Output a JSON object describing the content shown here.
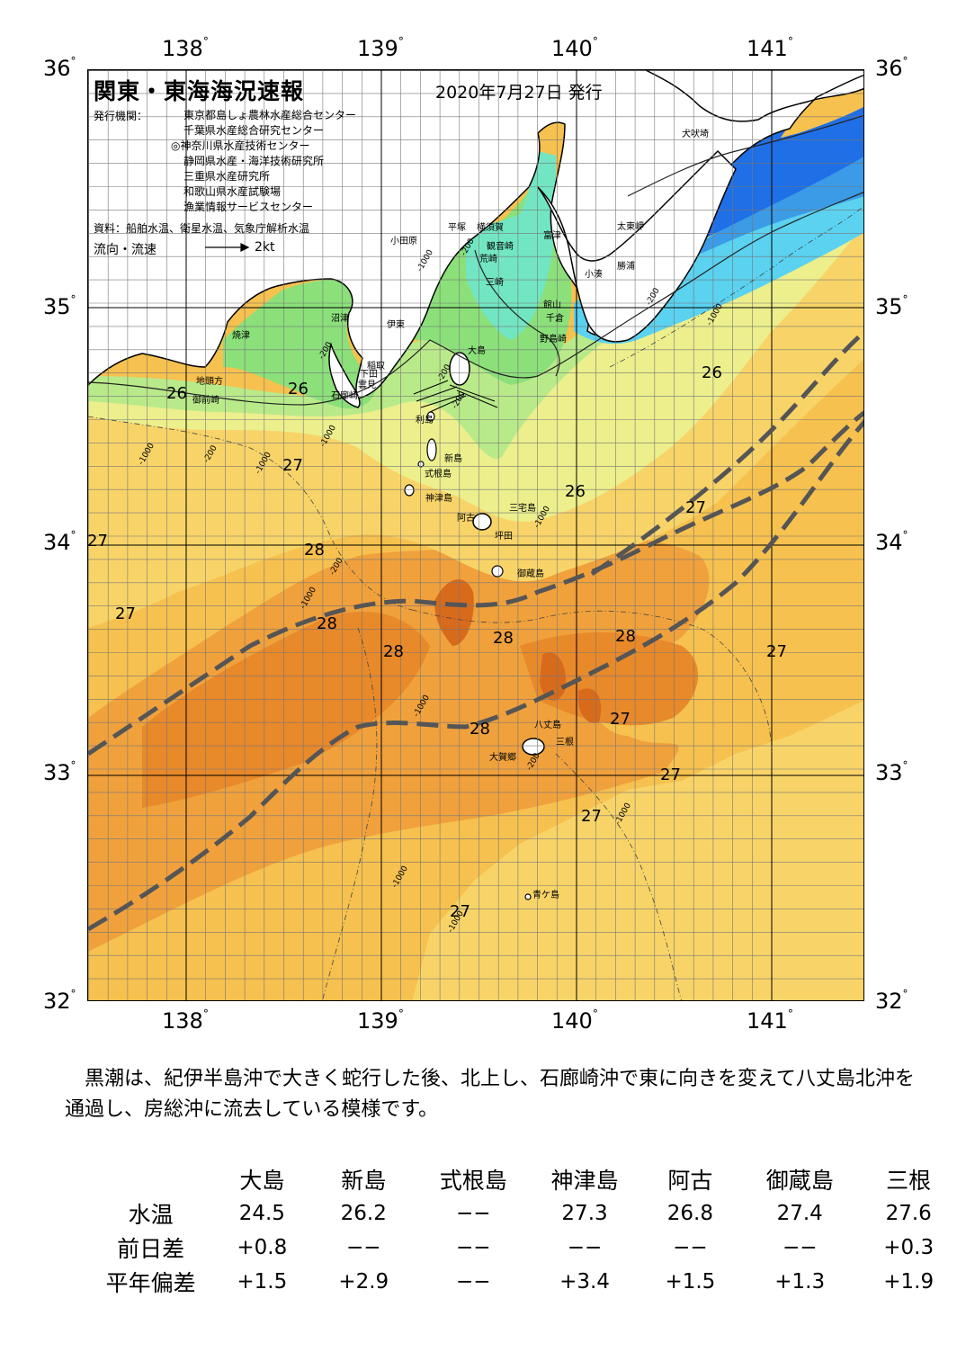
{
  "map": {
    "title": "関東・東海海況速報",
    "date": "2020年7月27日 発行",
    "org_label": "発行機関：",
    "organizations": [
      "東京都島しょ農林水産総合センター",
      "千葉県水産総合研究センター",
      "◎神奈川県水産技術センター",
      "静岡県水産・海洋技術研究所",
      "三重県水産研究所",
      "和歌山県水産試験場",
      "漁業情報サービスセンター"
    ],
    "sources": "資料：船舶水温、衛星水温、気象庁解析水温",
    "flow_label": "流向・流速",
    "flow_unit": "2kt",
    "lon_labels": [
      "138",
      "139",
      "140",
      "141"
    ],
    "lat_labels": [
      "36",
      "35",
      "34",
      "33",
      "32"
    ],
    "place_names": [
      "犬吠埼",
      "太東岬",
      "勝浦",
      "小湊",
      "富津",
      "平塚",
      "横須賀",
      "観音崎",
      "荒崎",
      "小田原",
      "三崎",
      "館山",
      "千倉",
      "野島崎",
      "沼津",
      "伊東",
      "焼津",
      "稲取",
      "下田",
      "雲見",
      "石廊崎",
      "大島",
      "地頭方",
      "御前崎",
      "利島",
      "新島",
      "式根島",
      "神津島",
      "三宅島",
      "阿古",
      "坪田",
      "御蔵島",
      "八丈島",
      "三根",
      "大賀郷",
      "青ケ島"
    ],
    "temp_labels": [
      "26",
      "26",
      "26",
      "26",
      "27",
      "27",
      "27",
      "27",
      "27",
      "27",
      "27",
      "27",
      "28",
      "28",
      "28",
      "28",
      "28",
      "28",
      "27"
    ],
    "depth_labels": [
      "-200",
      "-1000",
      "-200",
      "-1000",
      "-200",
      "-1000",
      "-200",
      "-1000",
      "-1000",
      "-200",
      "-1000",
      "-1000",
      "-200",
      "-1000",
      "-1000",
      "-1000",
      "-1000",
      "-200",
      "-200"
    ],
    "colors": {
      "t_lt20": "#1f6fe6",
      "t_21": "#3b9be6",
      "t_22": "#5ad2f0",
      "t_23": "#72e6c2",
      "t_24": "#8be07a",
      "t_25": "#b9ea8a",
      "t_26": "#ecef8c",
      "t_27": "#f8d468",
      "t_27_5": "#f6c14e",
      "t_28": "#f0a13c",
      "t_28_5": "#e8892a",
      "t_29": "#d86a1c",
      "land": "#ffffff",
      "kuroshio": "#555555"
    }
  },
  "description": "黒潮は、紀伊半島沖で大きく蛇行した後、北上し、石廊崎沖で東に向きを変えて八丈島北沖を通過し、房総沖に流去している模様です。",
  "table": {
    "columns": [
      "大島",
      "新島",
      "式根島",
      "神津島",
      "阿古",
      "御蔵島",
      "三根"
    ],
    "rows": [
      {
        "label": "水温",
        "values": [
          "24.5",
          "26.2",
          "−−",
          "27.3",
          "26.8",
          "27.4",
          "27.6"
        ]
      },
      {
        "label": "前日差",
        "values": [
          "+0.8",
          "−−",
          "−−",
          "−−",
          "−−",
          "−−",
          "+0.3"
        ]
      },
      {
        "label": "平年偏差",
        "values": [
          "+1.5",
          "+2.9",
          "−−",
          "+3.4",
          "+1.5",
          "+1.3",
          "+1.9"
        ]
      }
    ]
  }
}
